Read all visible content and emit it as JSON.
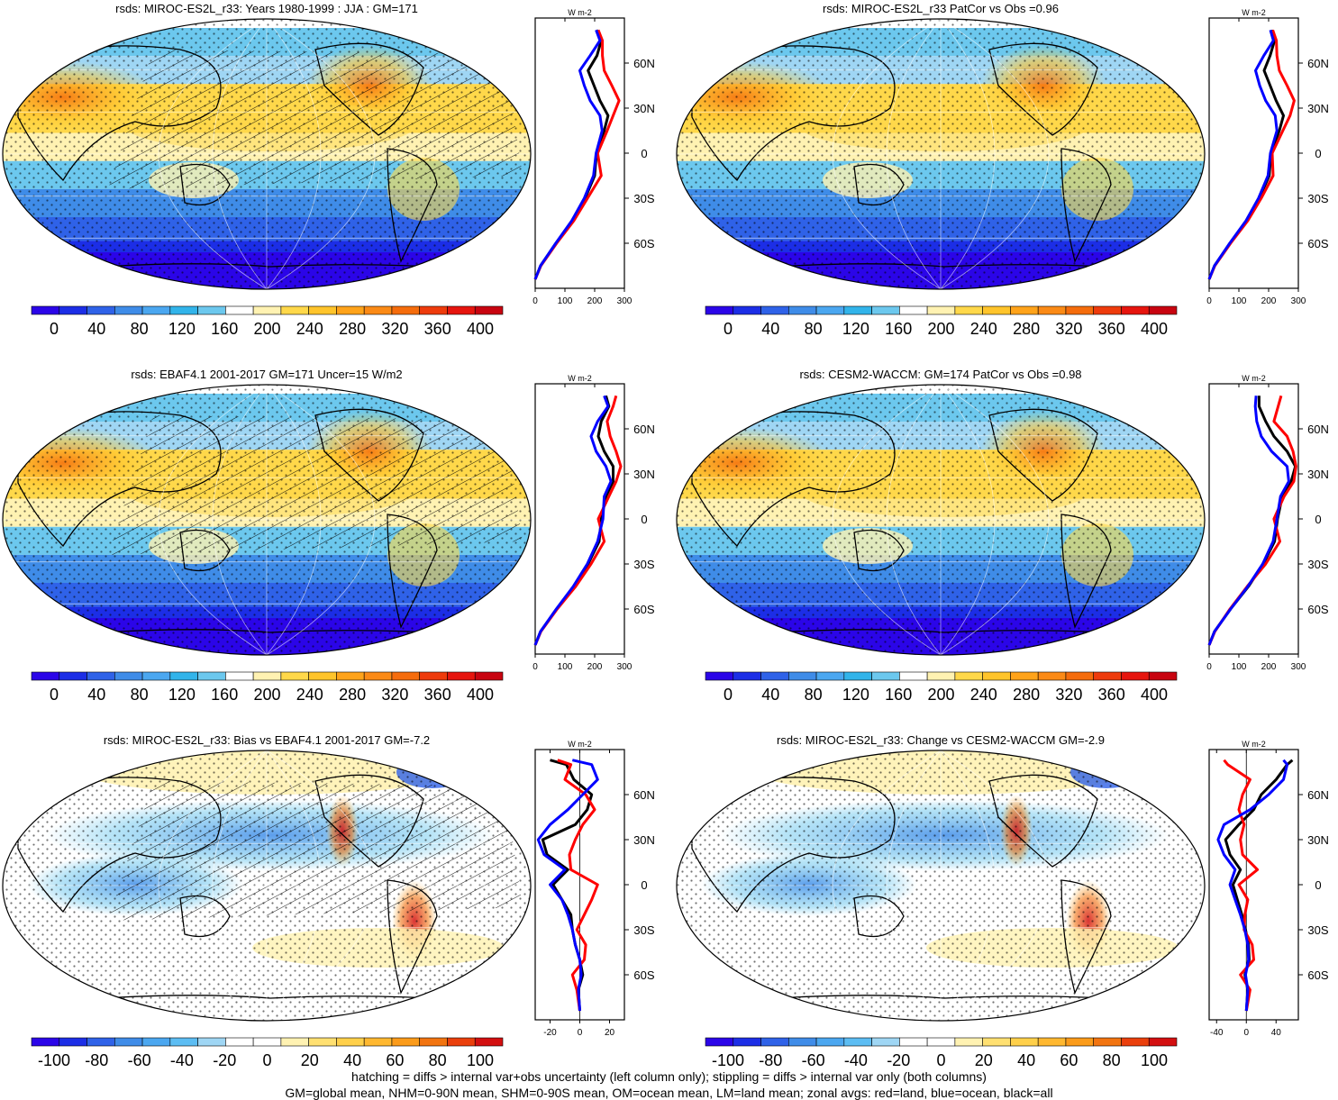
{
  "chart_data": [
    {
      "type": "heatmap",
      "title": "rsds: MIROC-ES2L_r33: Years 1980-1999 : JJA : GM=171",
      "palette": "abs",
      "colorbar_ticks": [
        "0",
        "40",
        "80",
        "120",
        "160",
        "200",
        "240",
        "280",
        "320",
        "360",
        "400"
      ],
      "zonal": {
        "unit": "W m-2",
        "xlim": [
          0,
          300
        ],
        "xticks": [
          "0",
          "100",
          "200",
          "300"
        ],
        "lat_ticks": [
          "60N",
          "30N",
          "0",
          "30S",
          "60S"
        ],
        "series": [
          {
            "color": "#000000",
            "lat": [
              -84,
              -75,
              -60,
              -45,
              -30,
              -15,
              0,
              15,
              25,
              35,
              45,
              55,
              65,
              75,
              82
            ],
            "values": [
              0,
              18,
              70,
              125,
              168,
              200,
              206,
              232,
              245,
              218,
              198,
              178,
              208,
              222,
              206
            ]
          },
          {
            "color": "#ff0000",
            "lat": [
              -84,
              -75,
              -60,
              -45,
              -30,
              -15,
              0,
              15,
              25,
              35,
              45,
              55,
              65,
              75,
              82
            ],
            "values": [
              0,
              19,
              72,
              130,
              176,
              222,
              210,
              242,
              262,
              282,
              258,
              232,
              226,
              226,
              212
            ]
          },
          {
            "color": "#0000ff",
            "lat": [
              -84,
              -75,
              -60,
              -45,
              -30,
              -15,
              0,
              15,
              25,
              35,
              45,
              55,
              65,
              75,
              82
            ],
            "values": [
              0,
              18,
              69,
              123,
              165,
              196,
              205,
              225,
              218,
              185,
              165,
              150,
              185,
              218,
              205
            ]
          }
        ]
      }
    },
    {
      "type": "heatmap",
      "title": "rsds: MIROC-ES2L_r33 PatCor vs Obs =0.96",
      "palette": "abs",
      "colorbar_ticks": [
        "0",
        "40",
        "80",
        "120",
        "160",
        "200",
        "240",
        "280",
        "320",
        "360",
        "400"
      ],
      "zonal": {
        "unit": "W m-2",
        "xlim": [
          0,
          300
        ],
        "xticks": [
          "0",
          "100",
          "200",
          "300"
        ],
        "lat_ticks": [
          "60N",
          "30N",
          "0",
          "30S",
          "60S"
        ],
        "series": [
          {
            "color": "#000000",
            "lat": [
              -84,
              -75,
              -60,
              -45,
              -30,
              -15,
              0,
              15,
              25,
              35,
              45,
              55,
              65,
              75,
              82
            ],
            "values": [
              0,
              18,
              70,
              125,
              168,
              202,
              208,
              236,
              250,
              225,
              205,
              185,
              205,
              220,
              210
            ]
          },
          {
            "color": "#ff0000",
            "lat": [
              -84,
              -75,
              -60,
              -45,
              -30,
              -15,
              0,
              15,
              25,
              35,
              45,
              55,
              65,
              75,
              82
            ],
            "values": [
              0,
              19,
              72,
              130,
              175,
              215,
              212,
              248,
              272,
              286,
              262,
              236,
              228,
              226,
              214
            ]
          },
          {
            "color": "#0000ff",
            "lat": [
              -84,
              -75,
              -60,
              -45,
              -30,
              -15,
              0,
              15,
              25,
              35,
              45,
              55,
              65,
              75,
              82
            ],
            "values": [
              0,
              18,
              69,
              124,
              166,
              198,
              206,
              228,
              222,
              190,
              170,
              156,
              184,
              216,
              206
            ]
          }
        ]
      }
    },
    {
      "type": "heatmap",
      "title": "rsds: EBAF4.1 2001-2017 GM=171 Uncer=15 W/m2",
      "palette": "abs",
      "colorbar_ticks": [
        "0",
        "40",
        "80",
        "120",
        "160",
        "200",
        "240",
        "280",
        "320",
        "360",
        "400"
      ],
      "zonal": {
        "unit": "W m-2",
        "xlim": [
          0,
          300
        ],
        "xticks": [
          "0",
          "100",
          "200",
          "300"
        ],
        "lat_ticks": [
          "60N",
          "30N",
          "0",
          "30S",
          "60S"
        ],
        "series": [
          {
            "color": "#000000",
            "lat": [
              -84,
              -75,
              -60,
              -45,
              -30,
              -15,
              0,
              15,
              25,
              35,
              45,
              55,
              65,
              75,
              82
            ],
            "values": [
              0,
              18,
              72,
              130,
              178,
              215,
              222,
              238,
              262,
              262,
              232,
              212,
              222,
              248,
              238
            ]
          },
          {
            "color": "#ff0000",
            "lat": [
              -84,
              -75,
              -60,
              -45,
              -30,
              -15,
              0,
              15,
              25,
              35,
              45,
              55,
              65,
              75,
              82
            ],
            "values": [
              0,
              19,
              74,
              136,
              188,
              232,
              212,
              248,
              272,
              288,
              272,
              252,
              242,
              262,
              272
            ]
          },
          {
            "color": "#0000ff",
            "lat": [
              -84,
              -75,
              -60,
              -45,
              -30,
              -15,
              0,
              15,
              25,
              35,
              45,
              55,
              65,
              75,
              82
            ],
            "values": [
              0,
              18,
              71,
              128,
              175,
              210,
              228,
              232,
              255,
              238,
              205,
              188,
              210,
              245,
              232
            ]
          }
        ]
      }
    },
    {
      "type": "heatmap",
      "title": "rsds: CESM2-WACCM: GM=174 PatCor vs Obs =0.98",
      "palette": "abs",
      "colorbar_ticks": [
        "0",
        "40",
        "80",
        "120",
        "160",
        "200",
        "240",
        "280",
        "320",
        "360",
        "400"
      ],
      "zonal": {
        "unit": "W m-2",
        "xlim": [
          0,
          300
        ],
        "xticks": [
          "0",
          "100",
          "200",
          "300"
        ],
        "lat_ticks": [
          "60N",
          "30N",
          "0",
          "30S",
          "60S"
        ],
        "series": [
          {
            "color": "#000000",
            "lat": [
              -84,
              -75,
              -60,
              -45,
              -30,
              -15,
              0,
              15,
              25,
              35,
              45,
              55,
              65,
              75,
              82
            ],
            "values": [
              0,
              18,
              72,
              132,
              182,
              220,
              230,
              246,
              276,
              290,
              262,
              218,
              190,
              168,
              168
            ]
          },
          {
            "color": "#ff0000",
            "lat": [
              -84,
              -75,
              -60,
              -45,
              -30,
              -15,
              0,
              15,
              25,
              35,
              45,
              55,
              65,
              75,
              82
            ],
            "values": [
              0,
              19,
              70,
              128,
              190,
              238,
              218,
              252,
              285,
              292,
              282,
              262,
              218,
              232,
              242
            ]
          },
          {
            "color": "#0000ff",
            "lat": [
              -84,
              -75,
              -60,
              -45,
              -30,
              -15,
              0,
              15,
              25,
              35,
              45,
              55,
              65,
              75,
              82
            ],
            "values": [
              0,
              18,
              72,
              130,
              180,
              215,
              228,
              240,
              268,
              262,
              210,
              175,
              160,
              155,
              158
            ]
          }
        ]
      }
    },
    {
      "type": "heatmap",
      "title": "rsds: MIROC-ES2L_r33: Bias vs EBAF4.1 2001-2017 GM=-7.2",
      "palette": "diff",
      "colorbar_ticks": [
        "-100",
        "-80",
        "-60",
        "-40",
        "-20",
        "0",
        "20",
        "40",
        "60",
        "80",
        "100"
      ],
      "zonal": {
        "unit": "W m-2",
        "xlim": [
          -30,
          30
        ],
        "xticks": [
          "-20",
          "0",
          "20"
        ],
        "lat_ticks": [
          "60N",
          "30N",
          "0",
          "30S",
          "60S"
        ],
        "series": [
          {
            "color": "#000000",
            "lat": [
              -84,
              -70,
              -60,
              -50,
              -40,
              -30,
              -20,
              -10,
              0,
              10,
              20,
              30,
              40,
              50,
              60,
              70,
              80,
              83
            ],
            "values": [
              0,
              -1,
              2,
              0,
              -3,
              -5,
              -6,
              -12,
              -18,
              -8,
              -22,
              -25,
              -3,
              5,
              8,
              -4,
              -9,
              -20
            ]
          },
          {
            "color": "#ff0000",
            "lat": [
              -84,
              -70,
              -60,
              -50,
              -40,
              -30,
              -20,
              -10,
              0,
              10,
              20,
              30,
              40,
              50,
              60,
              70,
              80,
              83
            ],
            "values": [
              0,
              -2,
              -5,
              3,
              4,
              -2,
              3,
              8,
              12,
              -6,
              -7,
              -3,
              2,
              10,
              4,
              -10,
              -6,
              -15
            ]
          },
          {
            "color": "#0000ff",
            "lat": [
              -84,
              -70,
              -60,
              -50,
              -40,
              -30,
              -20,
              -10,
              0,
              10,
              20,
              30,
              40,
              50,
              60,
              70,
              80,
              83
            ],
            "values": [
              0,
              -1,
              1,
              0,
              -3,
              -5,
              -8,
              -12,
              -20,
              -10,
              -24,
              -28,
              -20,
              -8,
              2,
              12,
              8,
              -5
            ]
          }
        ]
      }
    },
    {
      "type": "heatmap",
      "title": "rsds: MIROC-ES2L_r33: Change vs CESM2-WACCM GM=-2.9",
      "palette": "diff",
      "colorbar_ticks": [
        "-100",
        "-80",
        "-60",
        "-40",
        "-20",
        "0",
        "20",
        "40",
        "60",
        "80",
        "100"
      ],
      "zonal": {
        "unit": "W m-2",
        "xlim": [
          -50,
          70
        ],
        "xticks": [
          "-40",
          "0",
          "40"
        ],
        "lat_ticks": [
          "60N",
          "30N",
          "0",
          "30S",
          "60S"
        ],
        "series": [
          {
            "color": "#000000",
            "lat": [
              -84,
              -70,
              -60,
              -50,
              -40,
              -30,
              -20,
              -10,
              0,
              10,
              20,
              30,
              40,
              50,
              60,
              70,
              80,
              83
            ],
            "values": [
              0,
              2,
              -2,
              4,
              3,
              -1,
              -6,
              -12,
              -18,
              -8,
              -22,
              -28,
              -10,
              10,
              20,
              40,
              55,
              62
            ]
          },
          {
            "color": "#ff0000",
            "lat": [
              -84,
              -70,
              -60,
              -50,
              -40,
              -30,
              -20,
              -10,
              0,
              10,
              20,
              30,
              40,
              50,
              60,
              70,
              80,
              83
            ],
            "values": [
              0,
              5,
              -8,
              10,
              8,
              -3,
              -2,
              2,
              -10,
              15,
              -5,
              -8,
              -3,
              -10,
              -5,
              5,
              -25,
              -30
            ]
          },
          {
            "color": "#0000ff",
            "lat": [
              -84,
              -70,
              -60,
              -50,
              -40,
              -30,
              -20,
              -10,
              0,
              10,
              20,
              30,
              40,
              50,
              60,
              70,
              80,
              83
            ],
            "values": [
              0,
              2,
              -1,
              3,
              2,
              -2,
              -8,
              -15,
              -22,
              -15,
              -30,
              -38,
              -30,
              5,
              30,
              50,
              55,
              50
            ]
          }
        ]
      }
    }
  ],
  "footer": {
    "line1": "hatching = diffs > internal var+obs uncertainty (left column only); stippling = diffs > internal var only (both columns)",
    "line2": "GM=global mean, NHM=0-90N mean, SHM=0-90S mean, OM=ocean mean, LM=land mean; zonal avgs: red=land, blue=ocean, black=all"
  },
  "colors": {
    "abs_palette": [
      "#2b05e8",
      "#1c2ee6",
      "#2f62e8",
      "#3f8ce8",
      "#4ba7f0",
      "#32b4ea",
      "#6cc8ee",
      "#ffffff",
      "#fff2b2",
      "#ffd84a",
      "#ffc42b",
      "#ffa31a",
      "#fb8a16",
      "#f56c0c",
      "#ee3b0c",
      "#e6150e",
      "#c80410"
    ],
    "diff_palette": [
      "#2b05e8",
      "#1c2ee6",
      "#2f62e8",
      "#3f8ce8",
      "#4ba7f0",
      "#5cbdf3",
      "#9fd6f4",
      "#ffffff",
      "#ffffff",
      "#fff2b2",
      "#ffe071",
      "#ffd04a",
      "#ffb830",
      "#fb9b1a",
      "#f27410",
      "#ea3f0c",
      "#d30f10"
    ]
  }
}
